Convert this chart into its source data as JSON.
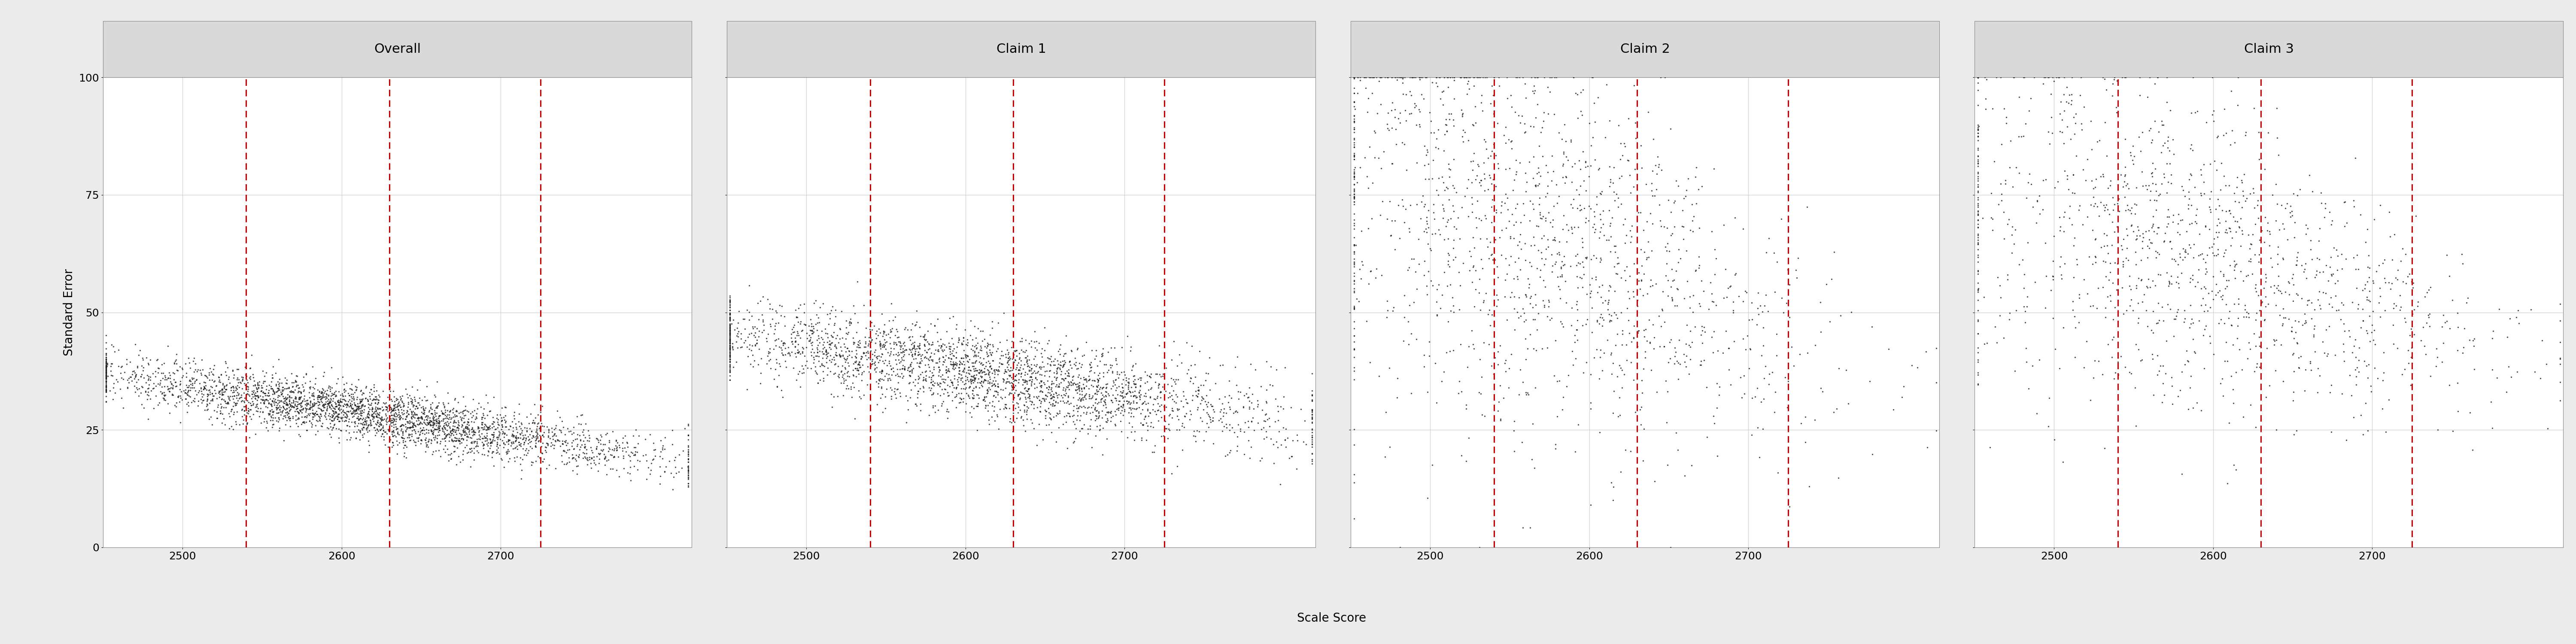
{
  "panels": [
    "Overall",
    "Claim 1",
    "Claim 2",
    "Claim 3"
  ],
  "x_min": 2450,
  "x_max": 2820,
  "y_min": 0,
  "y_max": 100,
  "x_ticks": [
    2500,
    2600,
    2700
  ],
  "y_ticks": [
    0,
    25,
    50,
    75,
    100
  ],
  "vlines": [
    2540,
    2630,
    2725
  ],
  "vline_color": "#CC0000",
  "dot_color": "#1a1a1a",
  "dot_size": 6,
  "dot_alpha": 0.75,
  "xlabel": "Scale Score",
  "ylabel": "Standard Error",
  "panel_header_bg": "#D9D9D9",
  "panel_header_edge": "#AAAAAA",
  "plot_bg": "#FFFFFF",
  "fig_bg": "#EBEBEB",
  "grid_color": "#D0D0D0",
  "outer_border_color": "#888888",
  "panel_title_fontsize": 22,
  "axis_label_fontsize": 20,
  "tick_label_fontsize": 18
}
